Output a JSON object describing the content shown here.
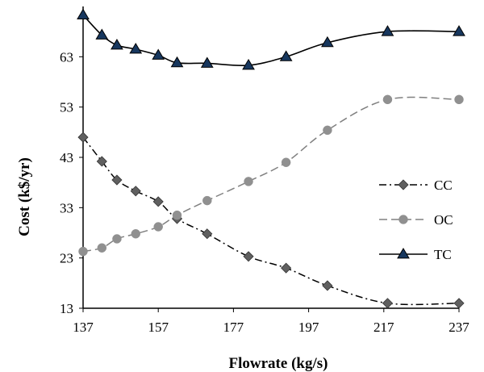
{
  "chart_data": {
    "type": "line",
    "xlabel": "Flowrate (kg/s)",
    "ylabel": "Cost (k$/yr)",
    "xlim": [
      137,
      237
    ],
    "ylim": [
      13,
      73
    ],
    "xticks": [
      "137",
      "157",
      "177",
      "197",
      "217",
      "237"
    ],
    "yticks": [
      "13",
      "23",
      "33",
      "43",
      "53",
      "63"
    ],
    "grid": false,
    "legend": "right",
    "series": [
      {
        "name": "CC",
        "style": "dash-dot",
        "marker": "diamond",
        "color": "#000000",
        "marker_color": "#606060",
        "x": [
          137,
          142,
          146,
          151,
          157,
          162,
          170,
          181,
          191,
          202,
          218,
          237
        ],
        "y": [
          47.0,
          42.2,
          38.5,
          36.3,
          34.2,
          30.8,
          27.8,
          23.3,
          21.0,
          17.5,
          14.0,
          14.0
        ]
      },
      {
        "name": "OC",
        "style": "dash",
        "marker": "circle",
        "color": "#808080",
        "marker_color": "#909090",
        "x": [
          137,
          142,
          146,
          151,
          157,
          162,
          170,
          181,
          191,
          202,
          218,
          237
        ],
        "y": [
          24.3,
          25.0,
          26.8,
          27.8,
          29.2,
          31.5,
          34.4,
          38.2,
          42.0,
          48.4,
          54.5,
          54.5
        ]
      },
      {
        "name": "TC",
        "style": "solid",
        "marker": "triangle",
        "color": "#000000",
        "marker_color": "#17375e",
        "x": [
          137,
          142,
          146,
          151,
          157,
          162,
          170,
          181,
          191,
          202,
          218,
          237
        ],
        "y": [
          71.3,
          67.3,
          65.3,
          64.5,
          63.3,
          61.8,
          61.7,
          61.3,
          63.0,
          65.8,
          68.0,
          68.0
        ]
      }
    ]
  }
}
